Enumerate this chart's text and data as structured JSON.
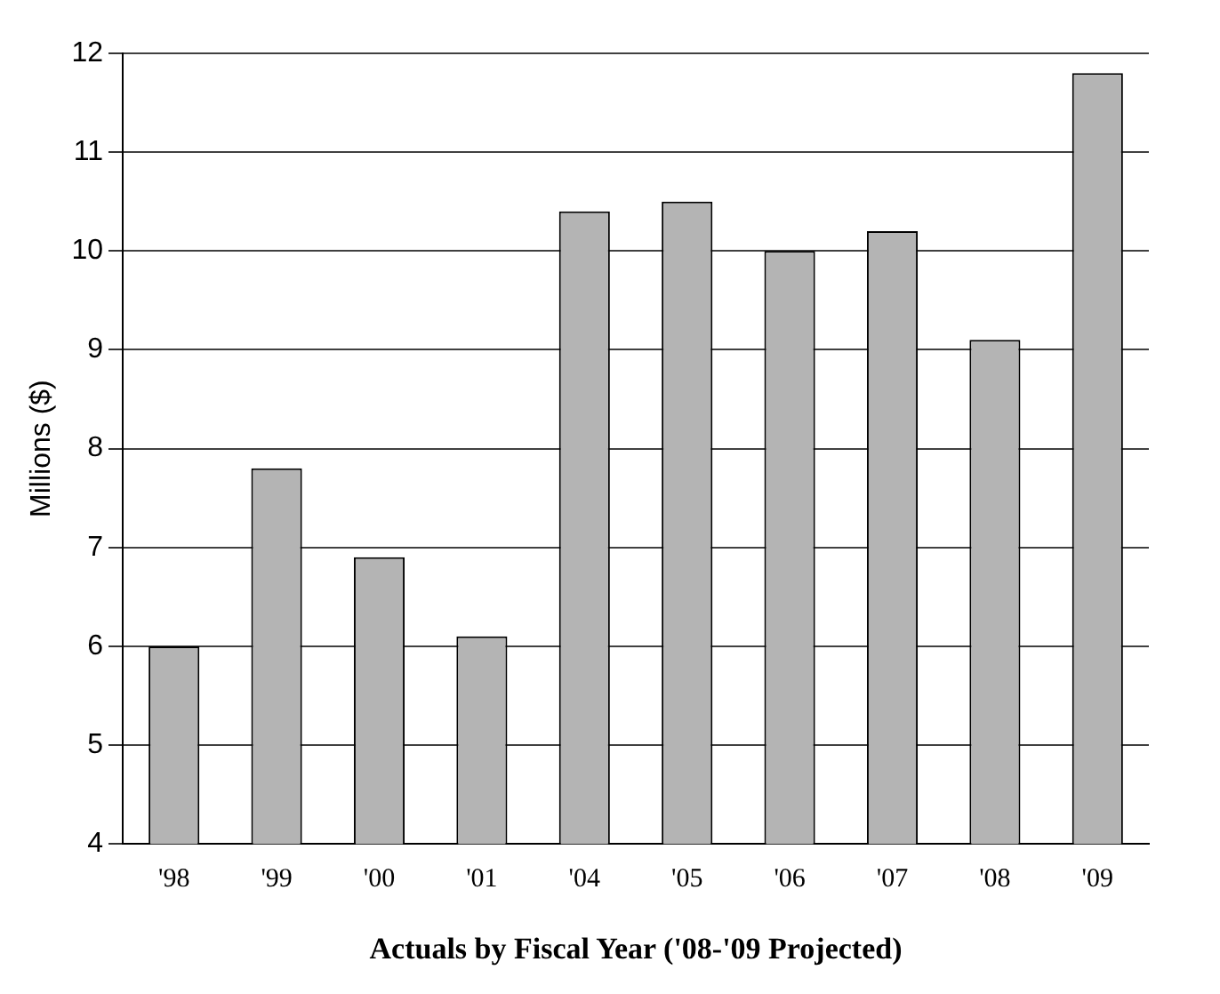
{
  "chart_data": {
    "type": "bar",
    "xlabel": "Actuals by Fiscal Year ('08-'09 Projected)",
    "ylabel": "Millions ($)",
    "categories": [
      "'98",
      "'99",
      "'00",
      "'01",
      "'04",
      "'05",
      "'06",
      "'07",
      "'08",
      "'09"
    ],
    "values": [
      6.0,
      7.8,
      6.9,
      6.1,
      10.4,
      10.5,
      10.0,
      10.2,
      9.1,
      11.8
    ],
    "color": "#b4b4b4",
    "ylim": [
      4,
      12
    ],
    "yticks": [
      4,
      5,
      6,
      7,
      8,
      9,
      10,
      11,
      12
    ],
    "grid": "y"
  }
}
